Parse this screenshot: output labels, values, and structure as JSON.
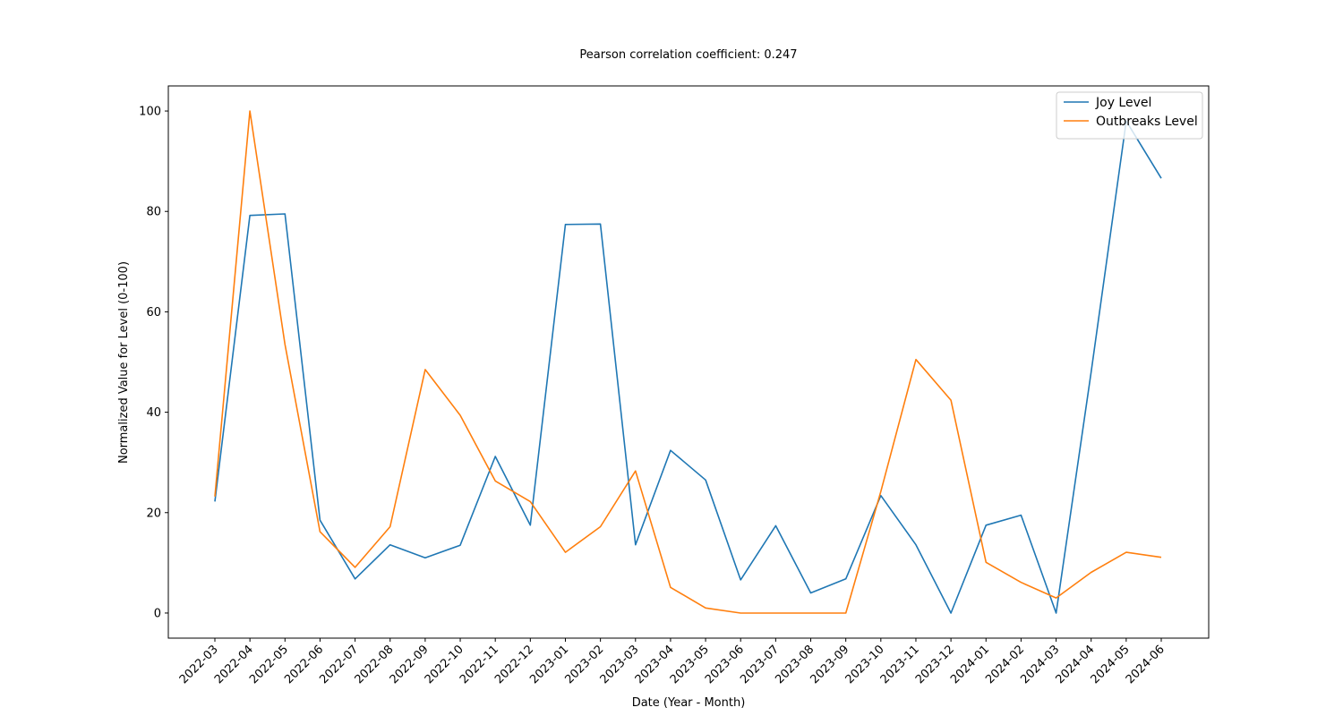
{
  "chart_data": {
    "type": "line",
    "title": "Pearson correlation coefficient: 0.247",
    "xlabel": "Date (Year - Month)",
    "ylabel": "Normalized Value for Level (0-100)",
    "ylim": [
      -5,
      105
    ],
    "yticks": [
      0,
      20,
      40,
      60,
      80,
      100
    ],
    "grid": false,
    "legend_position": "top-right",
    "categories": [
      "2022-03",
      "2022-04",
      "2022-05",
      "2022-06",
      "2022-07",
      "2022-08",
      "2022-09",
      "2022-10",
      "2022-11",
      "2022-12",
      "2023-01",
      "2023-02",
      "2023-03",
      "2023-04",
      "2023-05",
      "2023-06",
      "2023-07",
      "2023-08",
      "2023-09",
      "2023-10",
      "2023-11",
      "2023-12",
      "2024-01",
      "2024-02",
      "2024-03",
      "2024-04",
      "2024-05",
      "2024-06"
    ],
    "series": [
      {
        "name": "Joy Level",
        "color": "#1f77b4",
        "values": [
          22.2,
          79.2,
          79.5,
          18.5,
          6.8,
          13.6,
          11.0,
          13.5,
          31.2,
          17.5,
          77.4,
          77.5,
          13.6,
          32.4,
          26.5,
          6.6,
          17.4,
          4.0,
          6.8,
          23.4,
          13.6,
          0.0,
          17.5,
          19.5,
          0.0,
          48.0,
          98.0,
          86.6
        ]
      },
      {
        "name": "Outbreaks Level",
        "color": "#ff7f0e",
        "values": [
          23.2,
          100.0,
          53.5,
          16.2,
          9.1,
          17.2,
          48.5,
          39.4,
          26.3,
          22.2,
          12.1,
          17.2,
          28.3,
          5.1,
          1.0,
          0.0,
          0.0,
          0.0,
          0.0,
          24.2,
          50.5,
          42.4,
          10.1,
          6.1,
          3.0,
          8.1,
          12.1,
          11.1
        ]
      }
    ]
  }
}
